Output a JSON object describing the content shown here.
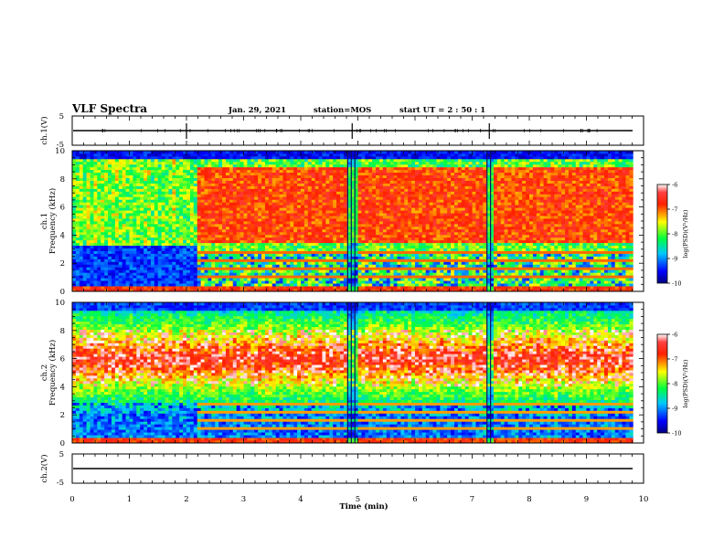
{
  "header": {
    "title": "VLF Spectra",
    "date": "Jan. 29, 2021",
    "station": "station=MOS",
    "start": "start  UT =  2 : 50 : 1"
  },
  "axes": {
    "xlabel": "Time  (min)",
    "ch1_wave_label": "ch.1(V)",
    "ch2_wave_label": "ch.2(V)",
    "ch1_spec_label": "ch.1",
    "ch2_spec_label": "ch.2",
    "freq_label": "Frequency  (kHz)",
    "colorbar_label": "log(PSD)(V²/Hz)"
  },
  "colors": {
    "low": "#00007f",
    "mid_low": "#0000ff",
    "mid": "#00ff00",
    "mid_high": "#ffff00",
    "high": "#ff0000",
    "peak": "#ffffff"
  },
  "chart_data": [
    {
      "type": "line",
      "panel": "ch1-waveform",
      "xlim": [
        0,
        10
      ],
      "ylim": [
        -5,
        5
      ],
      "y_ticks": [
        5,
        -5
      ],
      "x_ticks": [
        0,
        1,
        2,
        3,
        4,
        5,
        6,
        7,
        8,
        9,
        10
      ],
      "baseline_value": 0,
      "spike_times_min": [
        2.0,
        4.9,
        7.3
      ]
    },
    {
      "type": "heatmap",
      "panel": "ch1-spectrogram",
      "xlim": [
        0,
        10
      ],
      "ylim": [
        0,
        10
      ],
      "y_ticks": [
        0,
        2,
        4,
        6,
        8,
        10
      ],
      "data_end_min": 9.8,
      "colorbar": {
        "min": -10,
        "max": -6,
        "ticks": [
          -6,
          -7,
          -8,
          -9,
          -10
        ]
      },
      "features": {
        "quiet_interval_min": [
          0.0,
          2.2
        ],
        "strong_band_khz": [
          3.5,
          8.8
        ],
        "gap_times_min": [
          4.9,
          7.3
        ]
      }
    },
    {
      "type": "heatmap",
      "panel": "ch2-spectrogram",
      "xlim": [
        0,
        10
      ],
      "ylim": [
        0,
        10
      ],
      "y_ticks": [
        0,
        2,
        4,
        6,
        8,
        10
      ],
      "data_end_min": 9.8,
      "colorbar": {
        "min": -10,
        "max": -6,
        "ticks": [
          -6,
          -7,
          -8,
          -9,
          -10
        ]
      },
      "features": {
        "strong_band_khz": [
          4.0,
          8.0
        ],
        "gap_times_min": [
          4.9,
          7.3
        ]
      }
    },
    {
      "type": "line",
      "panel": "ch2-waveform",
      "xlim": [
        0,
        10
      ],
      "ylim": [
        -5,
        5
      ],
      "y_ticks": [
        5,
        -5
      ],
      "x_ticks": [
        0,
        1,
        2,
        3,
        4,
        5,
        6,
        7,
        8,
        9,
        10
      ],
      "baseline_value": 0
    }
  ]
}
